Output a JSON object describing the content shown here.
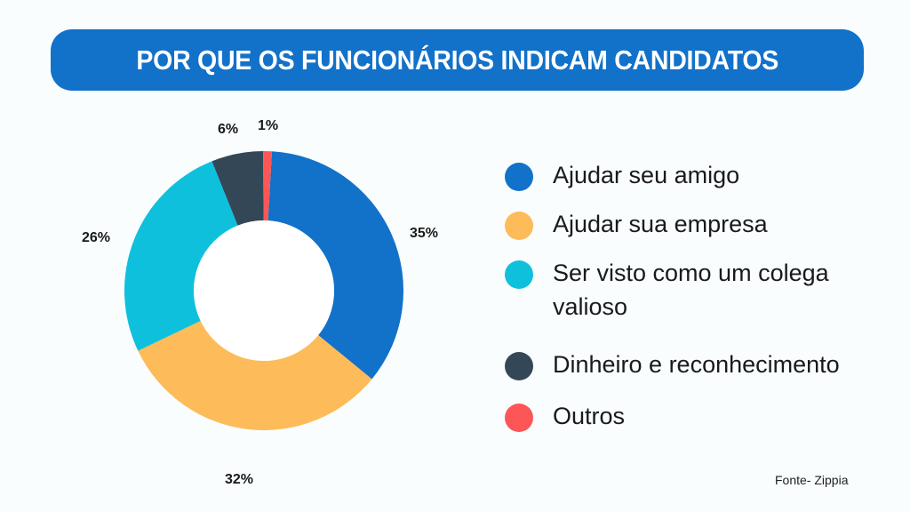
{
  "title": "POR QUE OS FUNCIONÁRIOS INDICAM CANDIDATOS",
  "source": "Fonte- Zippia",
  "colors": {
    "banner": "#1271c9",
    "background": "#f9fdfe"
  },
  "chart_data": {
    "type": "pie",
    "subtype": "donut",
    "title": "POR QUE OS FUNCIONÁRIOS INDICAM CANDIDATOS",
    "categories": [
      "Ajudar seu amigo",
      "Ajudar sua empresa",
      "Ser visto como um colega valioso",
      "Dinheiro e reconhecimento",
      "Outros"
    ],
    "values": [
      35,
      32,
      26,
      6,
      1
    ],
    "labels": [
      "35%",
      "32%",
      "26%",
      "6%",
      "1%"
    ],
    "colors": [
      "#1271c9",
      "#fdbb59",
      "#0fc0dd",
      "#334756",
      "#fc5656"
    ],
    "legend_position": "right",
    "unit": "%"
  },
  "legend": [
    {
      "label": "Ajudar seu amigo",
      "color": "#1271c9"
    },
    {
      "label": "Ajudar sua empresa",
      "color": "#fdbb59"
    },
    {
      "label": "Ser visto como um colega valioso",
      "color": "#0fc0dd"
    },
    {
      "label": "Dinheiro e reconhecimento",
      "color": "#334756"
    },
    {
      "label": "Outros",
      "color": "#fc5656"
    }
  ],
  "pct_labels": {
    "a": "35%",
    "b": "32%",
    "c": "26%",
    "d": "6%",
    "e": "1%"
  }
}
